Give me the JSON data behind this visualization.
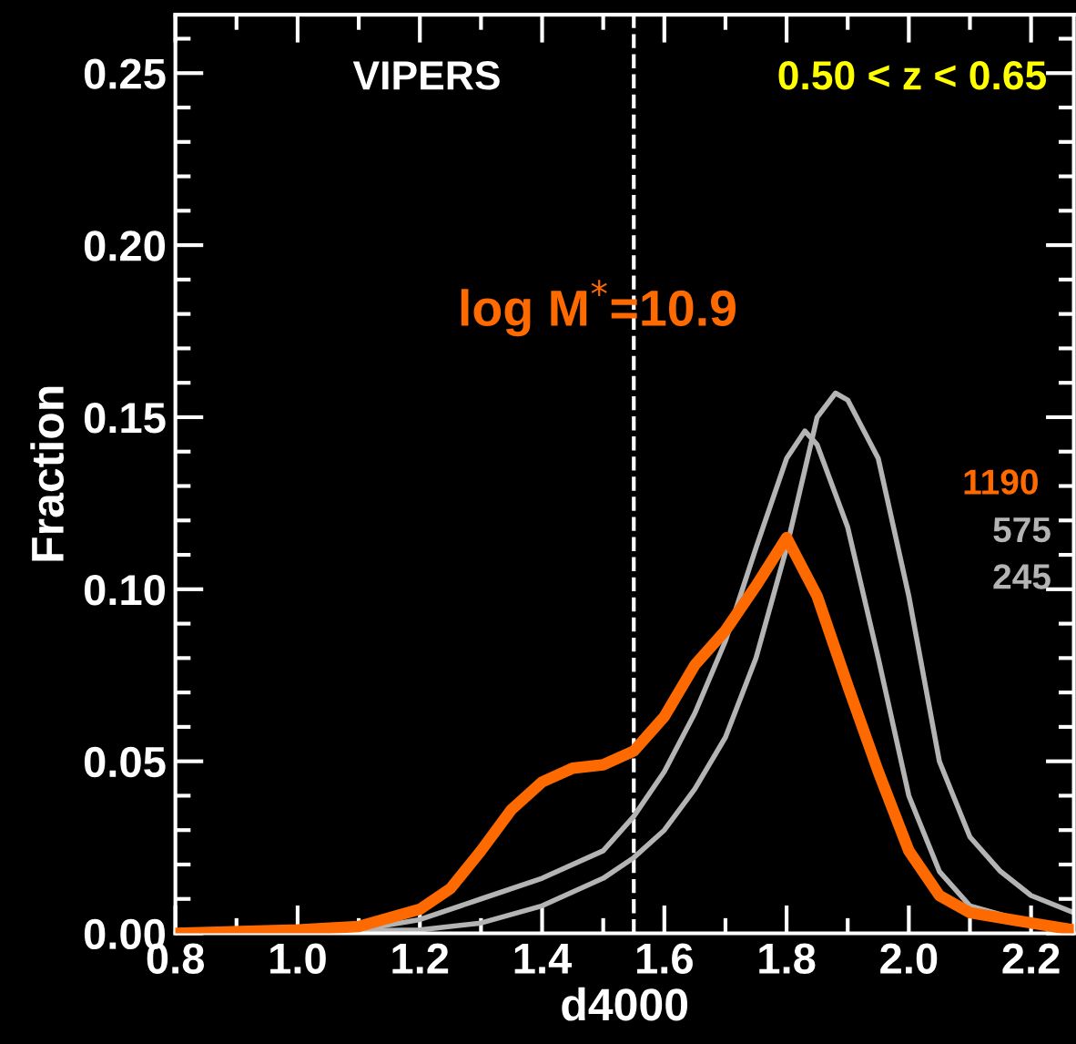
{
  "chart_data": {
    "type": "line",
    "xlabel": "d4000",
    "ylabel": "Fraction",
    "annotations": [
      "VIPERS",
      "0.50 < z < 0.65",
      "log M$^{*}$=10.9",
      "575",
      "245"
    ],
    "xlim": [
      0.8,
      2.27
    ],
    "ylim": [
      0,
      0.267
    ],
    "xticks": [
      {
        "value": 0.8,
        "label": "0.8"
      },
      {
        "value": 1.0,
        "label": "1.0"
      },
      {
        "value": 1.2,
        "label": "1.2"
      },
      {
        "value": 1.4,
        "label": "1.4"
      },
      {
        "value": 1.6,
        "label": "1.6"
      },
      {
        "value": 1.8,
        "label": "1.8"
      },
      {
        "value": 2.0,
        "label": "2.0"
      },
      {
        "value": 2.2,
        "label": "2.2"
      }
    ],
    "yticks": [
      {
        "value": 0,
        "label": "0.00"
      },
      {
        "value": 0.05,
        "label": "0.05"
      },
      {
        "value": 0.1,
        "label": "0.10"
      },
      {
        "value": 0.15,
        "label": "0.15"
      },
      {
        "value": 0.2,
        "label": "0.20"
      },
      {
        "value": 0.25,
        "label": "0.25"
      }
    ],
    "ref_lines": [
      {
        "axis": "x",
        "value": 1.55,
        "color": "#ffffff",
        "line_style": "dashed"
      }
    ],
    "legend": "right",
    "grid": false,
    "marker": "none",
    "line_style": "solid",
    "series": [
      {
        "name": "1190",
        "color": "#ff6a00",
        "x": [
          0.8,
          1.0,
          1.1,
          1.2,
          1.25,
          1.3,
          1.35,
          1.4,
          1.45,
          1.5,
          1.55,
          1.6,
          1.65,
          1.7,
          1.75,
          1.8,
          1.85,
          1.9,
          1.95,
          2.0,
          2.05,
          2.1,
          2.2,
          2.27
        ],
        "values": [
          0,
          0.001,
          0.002,
          0.007,
          0.013,
          0.024,
          0.036,
          0.044,
          0.048,
          0.049,
          0.053,
          0.063,
          0.078,
          0.088,
          0.101,
          0.115,
          0.098,
          0.072,
          0.047,
          0.024,
          0.011,
          0.006,
          0.003,
          0.001
        ]
      },
      {
        "color": "#b4b4b4",
        "x": [
          0.8,
          1.1,
          1.2,
          1.3,
          1.4,
          1.5,
          1.55,
          1.6,
          1.65,
          1.7,
          1.75,
          1.8,
          1.83,
          1.85,
          1.9,
          1.95,
          2.0,
          2.05,
          2.1,
          2.2,
          2.27
        ],
        "values": [
          0,
          0.001,
          0.004,
          0.01,
          0.016,
          0.024,
          0.034,
          0.047,
          0.064,
          0.085,
          0.112,
          0.138,
          0.146,
          0.142,
          0.118,
          0.08,
          0.04,
          0.018,
          0.008,
          0.003,
          0.001
        ]
      },
      {
        "color": "#b4b4b4",
        "x": [
          0.8,
          1.2,
          1.3,
          1.4,
          1.5,
          1.55,
          1.6,
          1.65,
          1.7,
          1.75,
          1.8,
          1.85,
          1.88,
          1.9,
          1.95,
          2.0,
          2.05,
          2.1,
          2.15,
          2.2,
          2.27
        ],
        "values": [
          0,
          0.001,
          0.003,
          0.008,
          0.016,
          0.022,
          0.03,
          0.042,
          0.057,
          0.08,
          0.112,
          0.15,
          0.157,
          0.155,
          0.138,
          0.098,
          0.05,
          0.028,
          0.018,
          0.011,
          0.006
        ]
      }
    ]
  }
}
